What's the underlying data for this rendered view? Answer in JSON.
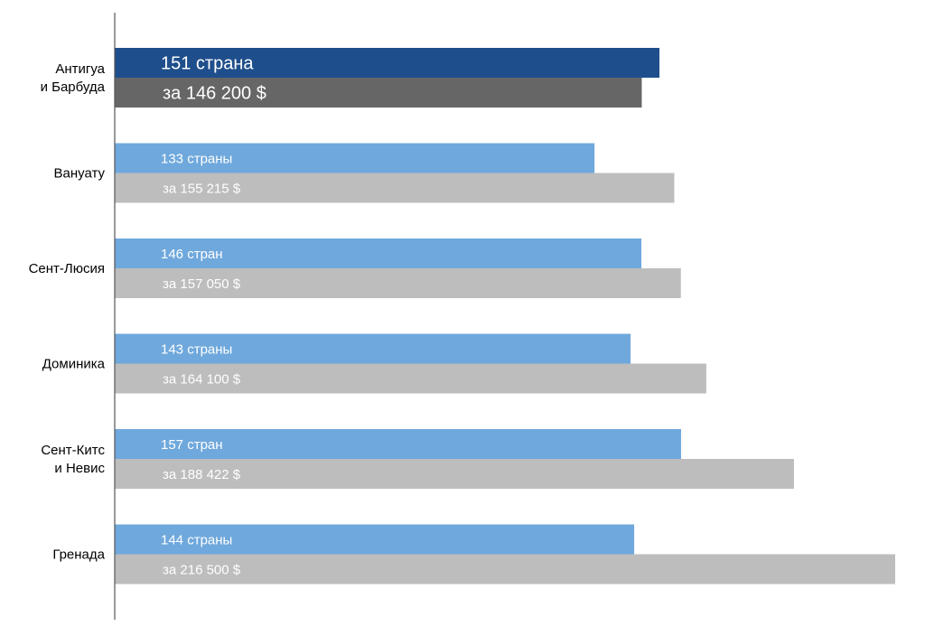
{
  "chart_data": {
    "type": "bar",
    "orientation": "horizontal",
    "categories": [
      "Антигуа\nи Барбуда",
      "Вануату",
      "Сент-Люсия",
      "Доминика",
      "Сент-Китс\nи Невис",
      "Гренада"
    ],
    "series": [
      {
        "values": [
          151,
          133,
          146,
          143,
          157,
          144
        ],
        "data_labels": [
          "151 страна",
          "133 страны",
          "146 стран",
          "143 страны",
          "157 стран",
          "144 страны"
        ]
      },
      {
        "values": [
          146200,
          155215,
          157050,
          164100,
          188422,
          216500
        ],
        "data_labels": [
          "за 146 200 $",
          "за 155 215 $",
          "за 157 050 $",
          "за 164 100 $",
          "за 188 422 $",
          "за 216 500 $"
        ]
      }
    ],
    "highlighted_category_index": 0,
    "colors": {
      "series1": "#6fa8dc",
      "series2": "#bdbdbd",
      "highlight_series1": "#1f4e8c",
      "highlight_series2": "#666666",
      "axis": "#555555",
      "category_text": "#000000",
      "label_text": "#ffffff"
    },
    "title": "",
    "xlabel": "",
    "ylabel": "",
    "grid": false,
    "legend": false
  }
}
